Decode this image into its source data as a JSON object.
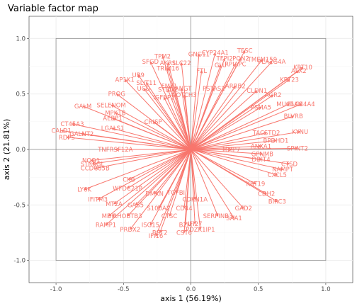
{
  "chart_data": {
    "type": "scatter",
    "title": "Variable factor map",
    "xlabel": "axis 1 (56.19%)",
    "ylabel": "axis 2 (21.81%)",
    "xlim": [
      -1.2,
      1.2
    ],
    "ylim": [
      -1.2,
      1.2
    ],
    "x_ticks": [
      -1.0,
      -0.5,
      0.0,
      0.5,
      1.0
    ],
    "y_ticks": [
      -1.0,
      -0.5,
      0.0,
      0.5,
      1.0
    ],
    "x_tick_labels": [
      "-1.0",
      "-0.5",
      "0.0",
      "0.5",
      "1.0"
    ],
    "y_tick_labels": [
      "-1.0",
      "-0.5",
      "0.0",
      "0.5",
      "1.0"
    ],
    "grid": true,
    "reference_box": [
      -1,
      1,
      -1,
      1
    ],
    "arrow_color": "#f8766d",
    "variables": [
      {
        "name": "TESC",
        "x": 0.4,
        "y": 0.89
      },
      {
        "name": "GNG11",
        "x": 0.06,
        "y": 0.86
      },
      {
        "name": "CYP24A1",
        "x": 0.18,
        "y": 0.87
      },
      {
        "name": "PON2",
        "x": 0.37,
        "y": 0.82
      },
      {
        "name": "TMEM159",
        "x": 0.53,
        "y": 0.81
      },
      {
        "name": "PLA2G4A",
        "x": 0.6,
        "y": 0.79
      },
      {
        "name": "TFPI2",
        "x": 0.25,
        "y": 0.82
      },
      {
        "name": "RPIAPC",
        "x": 0.33,
        "y": 0.77
      },
      {
        "name": "GLU",
        "x": 0.22,
        "y": 0.76
      },
      {
        "name": "TPM2",
        "x": -0.21,
        "y": 0.84
      },
      {
        "name": "SFGD",
        "x": -0.3,
        "y": 0.79
      },
      {
        "name": "AKR1",
        "x": -0.17,
        "y": 0.78
      },
      {
        "name": "SLC22",
        "x": -0.07,
        "y": 0.78
      },
      {
        "name": "TRIM16",
        "x": -0.17,
        "y": 0.73
      },
      {
        "name": "FTL",
        "x": 0.08,
        "y": 0.71
      },
      {
        "name": "AP1K1",
        "x": -0.49,
        "y": 0.63
      },
      {
        "name": "UB9",
        "x": -0.39,
        "y": 0.67
      },
      {
        "name": "SLIT11",
        "x": -0.33,
        "y": 0.6
      },
      {
        "name": "UCD",
        "x": -0.35,
        "y": 0.55
      },
      {
        "name": "FMF1",
        "x": -0.16,
        "y": 0.57
      },
      {
        "name": "STBD2",
        "x": -0.17,
        "y": 0.54
      },
      {
        "name": "LANGT",
        "x": -0.07,
        "y": 0.55
      },
      {
        "name": "IGFBP2",
        "x": -0.2,
        "y": 0.47
      },
      {
        "name": "NOTCH3",
        "x": -0.05,
        "y": 0.49
      },
      {
        "name": "PSTAS2",
        "x": 0.17,
        "y": 0.55
      },
      {
        "name": "ARRB2",
        "x": 0.33,
        "y": 0.57
      },
      {
        "name": "ALX2",
        "x": 0.8,
        "y": 0.71
      },
      {
        "name": "KRT10",
        "x": 0.83,
        "y": 0.74
      },
      {
        "name": "KRT23",
        "x": 0.73,
        "y": 0.63
      },
      {
        "name": "AGR2",
        "x": 0.61,
        "y": 0.49
      },
      {
        "name": "CLDN1",
        "x": 0.49,
        "y": 0.53
      },
      {
        "name": "MUC5AC",
        "x": 0.73,
        "y": 0.41
      },
      {
        "name": "SLC44A4",
        "x": 0.82,
        "y": 0.41
      },
      {
        "name": "BLVRB",
        "x": 0.76,
        "y": 0.3
      },
      {
        "name": "PSMA5",
        "x": 0.52,
        "y": 0.38
      },
      {
        "name": "PROG",
        "x": -0.55,
        "y": 0.5
      },
      {
        "name": "GALM",
        "x": -0.8,
        "y": 0.39
      },
      {
        "name": "SELENOM",
        "x": -0.59,
        "y": 0.4
      },
      {
        "name": "MPK1B",
        "x": -0.56,
        "y": 0.33
      },
      {
        "name": "AEBP1",
        "x": -0.58,
        "y": 0.28
      },
      {
        "name": "CRISP",
        "x": -0.28,
        "y": 0.25
      },
      {
        "name": "LGALS1",
        "x": -0.58,
        "y": 0.19
      },
      {
        "name": "CT45A3",
        "x": -0.88,
        "y": 0.23
      },
      {
        "name": "CALD1",
        "x": -0.96,
        "y": 0.17
      },
      {
        "name": "GALNT2",
        "x": -0.81,
        "y": 0.14
      },
      {
        "name": "RDPS",
        "x": -0.92,
        "y": 0.11
      },
      {
        "name": "TNFRSF12A",
        "x": -0.56,
        "y": 0.0
      },
      {
        "name": "TACSTD2",
        "x": 0.56,
        "y": 0.15
      },
      {
        "name": "KYNU",
        "x": 0.81,
        "y": 0.16
      },
      {
        "name": "BPDHD1",
        "x": 0.63,
        "y": 0.08
      },
      {
        "name": "SPINT2",
        "x": 0.79,
        "y": 0.01
      },
      {
        "name": "ANXA1",
        "x": 0.52,
        "y": 0.03
      },
      {
        "name": "MMP7",
        "x": 0.3,
        "y": 0.0
      },
      {
        "name": "GPNMB",
        "x": 0.53,
        "y": -0.04
      },
      {
        "name": "DDIT4",
        "x": 0.52,
        "y": -0.09
      },
      {
        "name": "CTSD",
        "x": 0.73,
        "y": -0.13
      },
      {
        "name": "NAMPT",
        "x": 0.68,
        "y": -0.18
      },
      {
        "name": "CXCL5",
        "x": 0.64,
        "y": -0.23
      },
      {
        "name": "KRT19",
        "x": 0.48,
        "y": -0.31
      },
      {
        "name": "NQO1",
        "x": -0.74,
        "y": -0.1
      },
      {
        "name": "STRBGL",
        "x": -0.73,
        "y": -0.13
      },
      {
        "name": "CCDC85B",
        "x": -0.71,
        "y": -0.17
      },
      {
        "name": "LY6K",
        "x": -0.79,
        "y": -0.36
      },
      {
        "name": "CKB",
        "x": -0.46,
        "y": -0.27
      },
      {
        "name": "WFDC21P",
        "x": -0.47,
        "y": -0.35
      },
      {
        "name": "IFITM3",
        "x": -0.69,
        "y": -0.45
      },
      {
        "name": "MT2A",
        "x": -0.57,
        "y": -0.49
      },
      {
        "name": "GAS5",
        "x": -0.41,
        "y": -0.5
      },
      {
        "name": "DMKN",
        "x": -0.27,
        "y": -0.4
      },
      {
        "name": "MDK",
        "x": -0.61,
        "y": -0.6
      },
      {
        "name": "RHOBTB3",
        "x": -0.47,
        "y": -0.6
      },
      {
        "name": "S100A2",
        "x": -0.24,
        "y": -0.53
      },
      {
        "name": "RAMP1",
        "x": -0.63,
        "y": -0.68
      },
      {
        "name": "CTSC",
        "x": -0.16,
        "y": -0.6
      },
      {
        "name": "ISG15",
        "x": -0.3,
        "y": -0.68
      },
      {
        "name": "PRDX2",
        "x": -0.45,
        "y": -0.72
      },
      {
        "name": "BST2",
        "x": -0.23,
        "y": -0.75
      },
      {
        "name": "B2M",
        "x": -0.04,
        "y": -0.68
      },
      {
        "name": "CST6",
        "x": -0.05,
        "y": -0.75
      },
      {
        "name": "IFI16",
        "x": -0.26,
        "y": -0.78
      },
      {
        "name": "IFI27",
        "x": 0.03,
        "y": -0.67
      },
      {
        "name": "PDZK1IP1",
        "x": 0.07,
        "y": -0.72
      },
      {
        "name": "SERPINB3",
        "x": 0.2,
        "y": -0.6
      },
      {
        "name": "SAA1",
        "x": 0.32,
        "y": -0.62
      },
      {
        "name": "BIRC3",
        "x": 0.64,
        "y": -0.47
      },
      {
        "name": "CDH2",
        "x": 0.56,
        "y": -0.4
      },
      {
        "name": "GAD2",
        "x": 0.39,
        "y": -0.53
      },
      {
        "name": "TGFBI",
        "x": -0.11,
        "y": -0.39
      },
      {
        "name": "CDKN1A",
        "x": 0.03,
        "y": -0.45
      },
      {
        "name": "CD44",
        "x": -0.05,
        "y": -0.53
      }
    ]
  }
}
